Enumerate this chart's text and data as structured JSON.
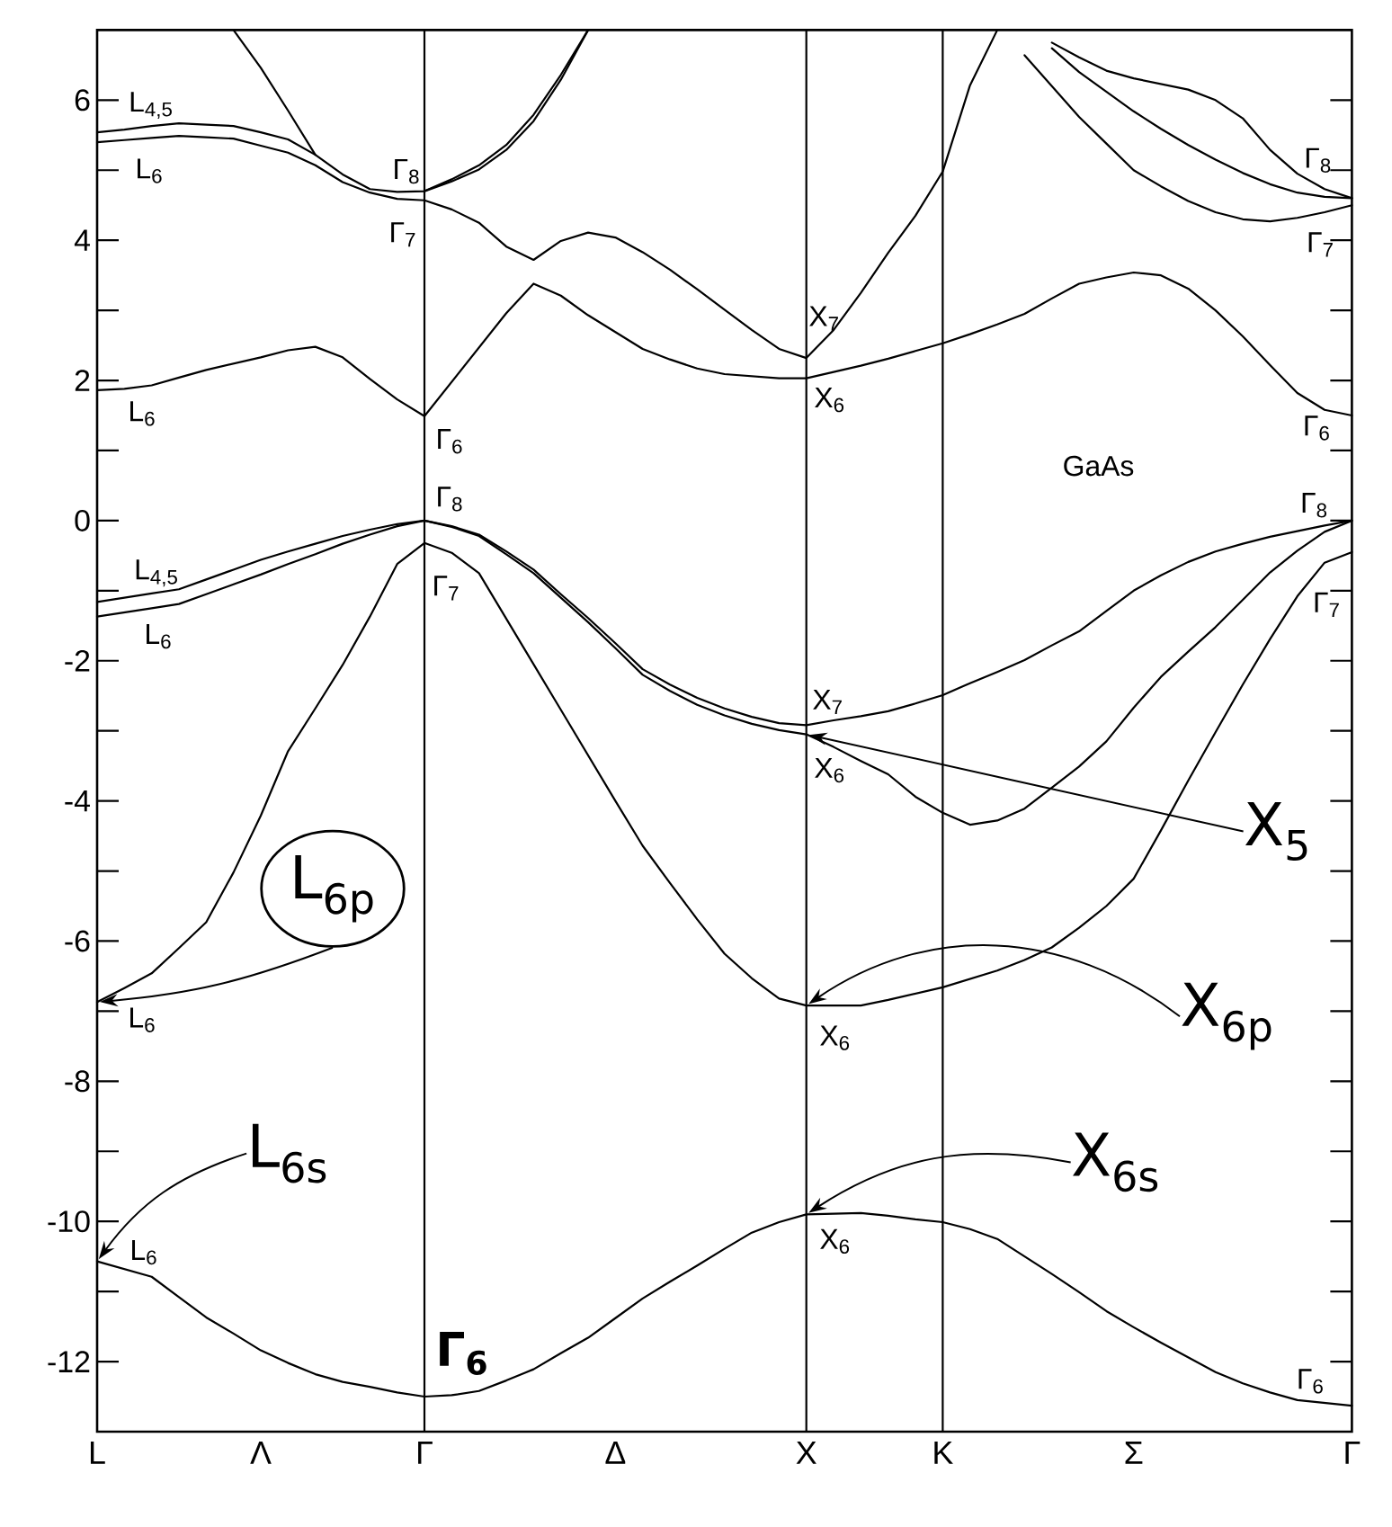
{
  "chart_data": {
    "type": "line",
    "categories": [
      "L",
      null,
      null,
      null,
      null,
      null,
      "Λ",
      null,
      null,
      null,
      null,
      null,
      "Γ",
      null,
      null,
      null,
      null,
      null,
      null,
      "Δ",
      null,
      null,
      null,
      null,
      null,
      null,
      "X",
      null,
      null,
      null,
      null,
      "K",
      null,
      null,
      null,
      null,
      null,
      null,
      "Σ",
      null,
      null,
      null,
      null,
      null,
      null,
      null,
      "Γ"
    ],
    "ylim": [
      -13,
      7
    ],
    "yticks": [
      -12,
      {
        "value": -11,
        "label": null
      },
      -10,
      {
        "value": -9,
        "label": null
      },
      -8,
      {
        "value": -7,
        "label": null
      },
      -6,
      {
        "value": -5,
        "label": null
      },
      -4,
      {
        "value": -3,
        "label": null
      },
      -2,
      {
        "value": -1,
        "label": null
      },
      0,
      {
        "value": 1,
        "label": null
      },
      2,
      {
        "value": 3,
        "label": null
      },
      4,
      {
        "value": 5,
        "label": null
      },
      6
    ],
    "series": [
      {
        "color": "#000000",
        "values": [
          5.54,
          5.58,
          5.63,
          5.67,
          5.65,
          5.63,
          5.54,
          5.44,
          5.22,
          4.94,
          4.73,
          4.69,
          4.7,
          4.87,
          5.07,
          5.36,
          5.79,
          6.36,
          7,
          null,
          null,
          null,
          null,
          null,
          null,
          null,
          null,
          null,
          null,
          null,
          null,
          null,
          null,
          null,
          null,
          null,
          null,
          null,
          null,
          null,
          null,
          null,
          null,
          null,
          null,
          null,
          null
        ]
      },
      {
        "color": "#000000",
        "values": [
          null,
          null,
          null,
          null,
          null,
          null,
          null,
          null,
          null,
          null,
          null,
          null,
          4.7,
          4.84,
          5.01,
          5.29,
          5.7,
          6.29,
          7,
          null,
          null,
          null,
          null,
          null,
          null,
          null,
          null,
          null,
          null,
          null,
          null,
          null,
          null,
          null,
          null,
          null,
          null,
          null,
          null,
          null,
          null,
          null,
          null,
          null,
          null,
          null,
          null
        ]
      },
      {
        "color": "#000000",
        "values": [
          null,
          null,
          null,
          null,
          null,
          7,
          6.46,
          5.85,
          5.22,
          null,
          null,
          null,
          null,
          null,
          null,
          null,
          null,
          null,
          null,
          null,
          null,
          null,
          null,
          null,
          null,
          null,
          null,
          null,
          null,
          null,
          null,
          null,
          null,
          null,
          null,
          null,
          null,
          null,
          null,
          null,
          null,
          null,
          null,
          null,
          null,
          null,
          null
        ]
      },
      {
        "color": "#000000",
        "values": [
          5.4,
          5.43,
          5.46,
          5.49,
          5.47,
          5.45,
          5.35,
          5.25,
          5.07,
          4.83,
          4.68,
          4.59,
          4.57,
          4.44,
          4.25,
          3.91,
          3.72,
          3.99,
          4.11,
          4.04,
          3.83,
          3.58,
          3.3,
          3.01,
          2.72,
          2.45,
          2.32,
          2.72,
          3.25,
          3.82,
          4.35,
          4.98,
          6.21,
          7,
          null,
          null,
          null,
          null,
          null,
          null,
          null,
          null,
          null,
          null,
          null,
          null,
          null
        ]
      },
      {
        "color": "#000000",
        "values": [
          1.86,
          1.88,
          1.93,
          2.04,
          2.15,
          2.24,
          2.33,
          2.43,
          2.48,
          2.33,
          2.02,
          1.73,
          1.49,
          1.98,
          2.47,
          2.96,
          3.38,
          3.21,
          2.93,
          2.69,
          2.45,
          2.3,
          2.17,
          2.09,
          2.06,
          2.03,
          2.03,
          2.12,
          2.21,
          2.31,
          2.42,
          2.53,
          2.66,
          2.8,
          2.95,
          3.17,
          3.38,
          3.47,
          3.54,
          3.5,
          3.31,
          3.0,
          2.63,
          2.22,
          1.82,
          1.58,
          1.5
        ]
      },
      {
        "color": "#000000",
        "values": [
          null,
          null,
          null,
          null,
          null,
          null,
          null,
          null,
          null,
          null,
          null,
          null,
          null,
          null,
          null,
          null,
          null,
          null,
          null,
          null,
          null,
          null,
          null,
          null,
          null,
          null,
          null,
          null,
          null,
          null,
          null,
          null,
          null,
          null,
          6.64,
          6.2,
          5.76,
          5.38,
          5.0,
          4.77,
          4.56,
          4.4,
          4.3,
          4.27,
          4.32,
          4.4,
          4.5
        ]
      },
      {
        "color": "#000000",
        "values": [
          null,
          null,
          null,
          null,
          null,
          null,
          null,
          null,
          null,
          null,
          null,
          null,
          null,
          null,
          null,
          null,
          null,
          null,
          null,
          null,
          null,
          null,
          null,
          null,
          null,
          null,
          null,
          null,
          null,
          null,
          null,
          null,
          null,
          null,
          null,
          6.74,
          6.4,
          6.12,
          5.84,
          5.59,
          5.36,
          5.15,
          4.96,
          4.8,
          4.68,
          4.62,
          4.6
        ]
      },
      {
        "color": "#000000",
        "values": [
          null,
          null,
          null,
          null,
          null,
          null,
          null,
          null,
          null,
          null,
          null,
          null,
          null,
          null,
          null,
          null,
          null,
          null,
          null,
          null,
          null,
          null,
          null,
          null,
          null,
          null,
          null,
          null,
          null,
          null,
          null,
          null,
          null,
          null,
          null,
          6.82,
          6.61,
          6.42,
          6.31,
          6.23,
          6.15,
          6.0,
          5.74,
          5.29,
          4.95,
          4.73,
          4.6
        ]
      },
      {
        "color": "#000000",
        "values": [
          -1.16,
          -1.1,
          -1.04,
          -0.98,
          -0.84,
          -0.7,
          -0.56,
          -0.44,
          -0.33,
          -0.22,
          -0.13,
          -0.05,
          0,
          -0.08,
          -0.2,
          -0.44,
          -0.7,
          -1.05,
          -1.39,
          -1.75,
          -2.12,
          -2.34,
          -2.53,
          -2.68,
          -2.8,
          -2.89,
          -2.92,
          -2.85,
          -2.79,
          -2.72,
          -2.61,
          -2.49,
          -2.32,
          -2.16,
          -1.99,
          -1.78,
          -1.58,
          -1.29,
          -1.0,
          -0.78,
          -0.59,
          -0.44,
          -0.33,
          -0.23,
          -0.15,
          -0.07,
          0
        ]
      },
      {
        "color": "#000000",
        "values": [
          -1.37,
          -1.31,
          -1.25,
          -1.19,
          -1.05,
          -0.91,
          -0.77,
          -0.62,
          -0.48,
          -0.33,
          -0.2,
          -0.08,
          0,
          -0.09,
          -0.22,
          -0.48,
          -0.75,
          -1.1,
          -1.45,
          -1.82,
          -2.2,
          -2.43,
          -2.63,
          -2.78,
          -2.9,
          -2.99,
          -3.05,
          -3.23,
          -3.43,
          -3.62,
          -3.94,
          -4.17,
          -4.34,
          -4.28,
          -4.11,
          -3.81,
          -3.51,
          -3.15,
          -2.67,
          -2.23,
          -1.87,
          -1.52,
          -1.13,
          -0.74,
          -0.43,
          -0.16,
          0
        ]
      },
      {
        "color": "#000000",
        "values": [
          -6.87,
          -6.67,
          -6.46,
          -6.1,
          -5.73,
          -5.02,
          -4.21,
          -3.29,
          -2.68,
          -2.06,
          -1.37,
          -0.62,
          -0.32,
          -0.46,
          -0.75,
          -1.4,
          -2.05,
          -2.7,
          -3.35,
          -4.0,
          -4.64,
          -5.17,
          -5.69,
          -6.18,
          -6.53,
          -6.82,
          -6.92,
          -6.92,
          -6.92,
          -6.84,
          -6.75,
          -6.66,
          -6.54,
          -6.42,
          -6.27,
          -6.09,
          -5.81,
          -5.5,
          -5.11,
          -4.42,
          -3.71,
          -3.02,
          -2.34,
          -1.69,
          -1.08,
          -0.6,
          -0.45
        ]
      },
      {
        "color": "#000000",
        "values": [
          -10.57,
          -10.68,
          -10.79,
          -11.08,
          -11.37,
          -11.6,
          -11.84,
          -12.02,
          -12.18,
          -12.29,
          -12.36,
          -12.44,
          -12.5,
          -12.48,
          -12.42,
          -12.27,
          -12.11,
          -11.88,
          -11.66,
          -11.38,
          -11.1,
          -10.86,
          -10.63,
          -10.39,
          -10.16,
          -10.01,
          -9.9,
          -9.89,
          -9.88,
          -9.92,
          -9.97,
          -10.01,
          -10.11,
          -10.25,
          -10.5,
          -10.75,
          -11.01,
          -11.28,
          -11.51,
          -11.73,
          -11.94,
          -12.15,
          -12.31,
          -12.44,
          -12.55,
          -12.59,
          -12.63
        ]
      }
    ],
    "ref_lines": [
      {
        "axis": "x",
        "value": "Γ"
      },
      {
        "axis": "x",
        "value": "X"
      },
      {
        "axis": "x",
        "value": "K"
      }
    ],
    "annotations": [
      {
        "text": "L$_{4,5}$",
        "x": "L",
        "y": 5.54
      },
      {
        "text": "L$_{6}$",
        "x": "L",
        "y": 5.4
      },
      {
        "text": "Γ$_{8}$",
        "x": "Γ",
        "y": 4.7
      },
      {
        "text": "Γ$_{7}$",
        "x": "Γ",
        "y": 4.57
      },
      {
        "text": "L$_{6}$",
        "x": "L",
        "y": 1.86
      },
      {
        "text": "Γ$_{6}$",
        "x": "Γ",
        "y": 1.49
      },
      {
        "text": "Γ$_{8}$",
        "x": "Γ",
        "y": 0
      },
      {
        "text": "L$_{4,5}$",
        "x": "L",
        "y": -1.16
      },
      {
        "text": "L$_{6}$",
        "x": "L",
        "y": -1.37
      },
      {
        "text": "Γ$_{7}$",
        "x": "Γ",
        "y": -0.32
      },
      {
        "text": "X$_{7}$",
        "x": "X",
        "y": 2.32
      },
      {
        "text": "X$_{6}$",
        "x": "X",
        "y": 2.03
      },
      {
        "text": "X$_{7}$",
        "x": "X",
        "y": -2.92
      },
      {
        "text": "X$_{6}$",
        "x": "X",
        "y": -3.05
      },
      {
        "text": "L$_{6}$",
        "x": "L",
        "y": -6.87
      },
      {
        "text": "X$_{6}$",
        "x": "X",
        "y": -6.92
      },
      {
        "text": "L$_{6}$",
        "x": "L",
        "y": -10.57
      },
      {
        "text": "X$_{6}$",
        "x": "X",
        "y": -9.9
      },
      {
        "text": "Γ$_{6}$",
        "x": "Γ",
        "y": -12.5
      },
      "Γ$_{8}$",
      "Γ$_{7}$",
      "Γ$_{6}$",
      "Γ$_{8}$",
      "Γ$_{7}$",
      "Γ$_{6}$",
      "GaAs",
      {
        "text": "L$_{6p}$",
        "x": "L",
        "y": -6.87
      },
      {
        "text": "X$_{5}$",
        "x": "X",
        "y": -3.05
      },
      {
        "text": "X$_{6p}$",
        "x": "X",
        "y": -6.92
      },
      {
        "text": "X$_{6s}$",
        "x": "X",
        "y": -9.9
      },
      {
        "text": "L$_{6s}$",
        "x": "L",
        "y": -10.57
      }
    ]
  }
}
